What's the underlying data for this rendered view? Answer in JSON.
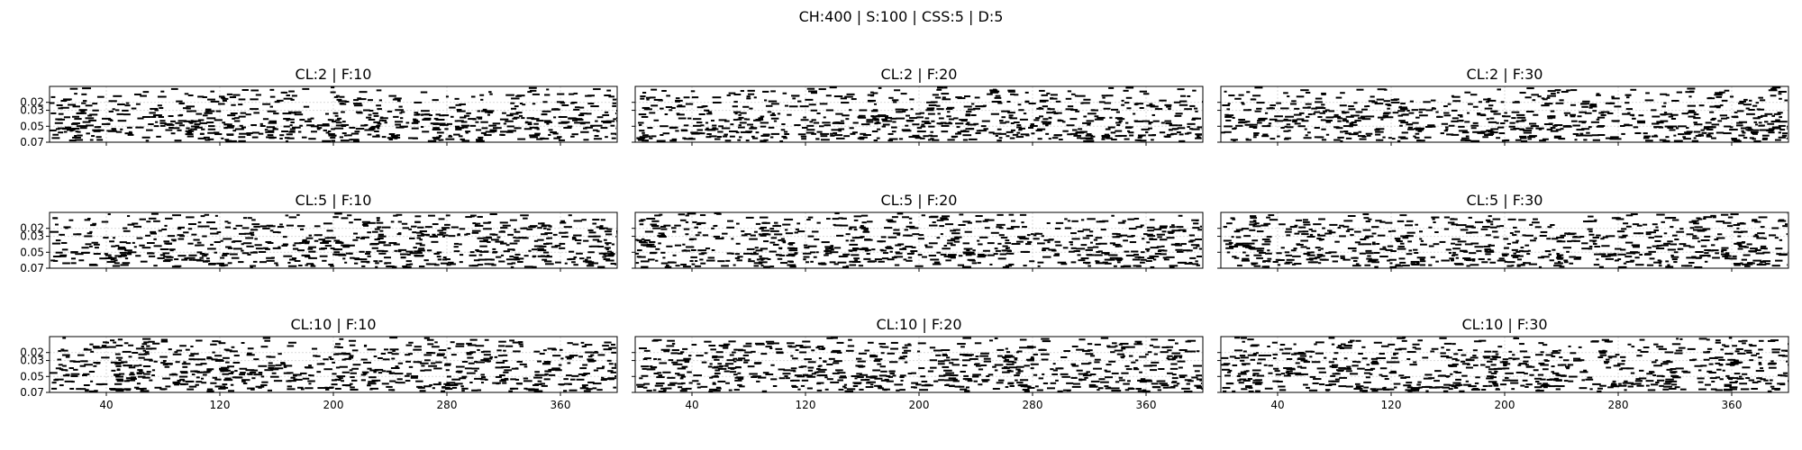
{
  "figure": {
    "suptitle": "CH:400 | S:100 | CSS:5 | D:5"
  },
  "colors": {
    "background": "#ffffff",
    "axes": "#000000",
    "marks": "#000000",
    "grid": "#d9d9d9"
  },
  "chart_data": [
    {
      "type": "scatter",
      "title": "CL:2 | F:10",
      "xlim": [
        0,
        400
      ],
      "ylim": [
        0.07,
        0.0
      ],
      "x_ticks": [],
      "y_ticks": [
        0.02,
        0.03,
        0.05,
        0.07
      ],
      "grid": true,
      "marker": "short horizontal dash",
      "seed": 11
    },
    {
      "type": "scatter",
      "title": "CL:2 | F:20",
      "xlim": [
        0,
        400
      ],
      "ylim": [
        0.07,
        0.0
      ],
      "x_ticks": [],
      "y_ticks": [],
      "grid": true,
      "marker": "short horizontal dash",
      "seed": 12
    },
    {
      "type": "scatter",
      "title": "CL:2 | F:30",
      "xlim": [
        0,
        400
      ],
      "ylim": [
        0.07,
        0.0
      ],
      "x_ticks": [],
      "y_ticks": [],
      "grid": true,
      "marker": "short horizontal dash",
      "seed": 13
    },
    {
      "type": "scatter",
      "title": "CL:5 | F:10",
      "xlim": [
        0,
        400
      ],
      "ylim": [
        0.07,
        0.0
      ],
      "x_ticks": [],
      "y_ticks": [
        0.02,
        0.03,
        0.05,
        0.07
      ],
      "grid": true,
      "marker": "short horizontal dash",
      "seed": 21
    },
    {
      "type": "scatter",
      "title": "CL:5 | F:20",
      "xlim": [
        0,
        400
      ],
      "ylim": [
        0.07,
        0.0
      ],
      "x_ticks": [],
      "y_ticks": [],
      "grid": true,
      "marker": "short horizontal dash",
      "seed": 22
    },
    {
      "type": "scatter",
      "title": "CL:5 | F:30",
      "xlim": [
        0,
        400
      ],
      "ylim": [
        0.07,
        0.0
      ],
      "x_ticks": [],
      "y_ticks": [],
      "grid": true,
      "marker": "short horizontal dash",
      "seed": 23
    },
    {
      "type": "scatter",
      "title": "CL:10 | F:10",
      "xlim": [
        0,
        400
      ],
      "ylim": [
        0.07,
        0.0
      ],
      "x_ticks": [
        40,
        120,
        200,
        280,
        360
      ],
      "y_ticks": [
        0.02,
        0.03,
        0.05,
        0.07
      ],
      "grid": true,
      "marker": "short horizontal dash",
      "seed": 31
    },
    {
      "type": "scatter",
      "title": "CL:10 | F:20",
      "xlim": [
        0,
        400
      ],
      "ylim": [
        0.07,
        0.0
      ],
      "x_ticks": [
        40,
        120,
        200,
        280,
        360
      ],
      "y_ticks": [],
      "grid": true,
      "marker": "short horizontal dash",
      "seed": 32
    },
    {
      "type": "scatter",
      "title": "CL:10 | F:30",
      "xlim": [
        0,
        400
      ],
      "ylim": [
        0.07,
        0.0
      ],
      "x_ticks": [
        40,
        120,
        200,
        280,
        360
      ],
      "y_ticks": [],
      "grid": true,
      "marker": "short horizontal dash",
      "seed": 33
    }
  ]
}
